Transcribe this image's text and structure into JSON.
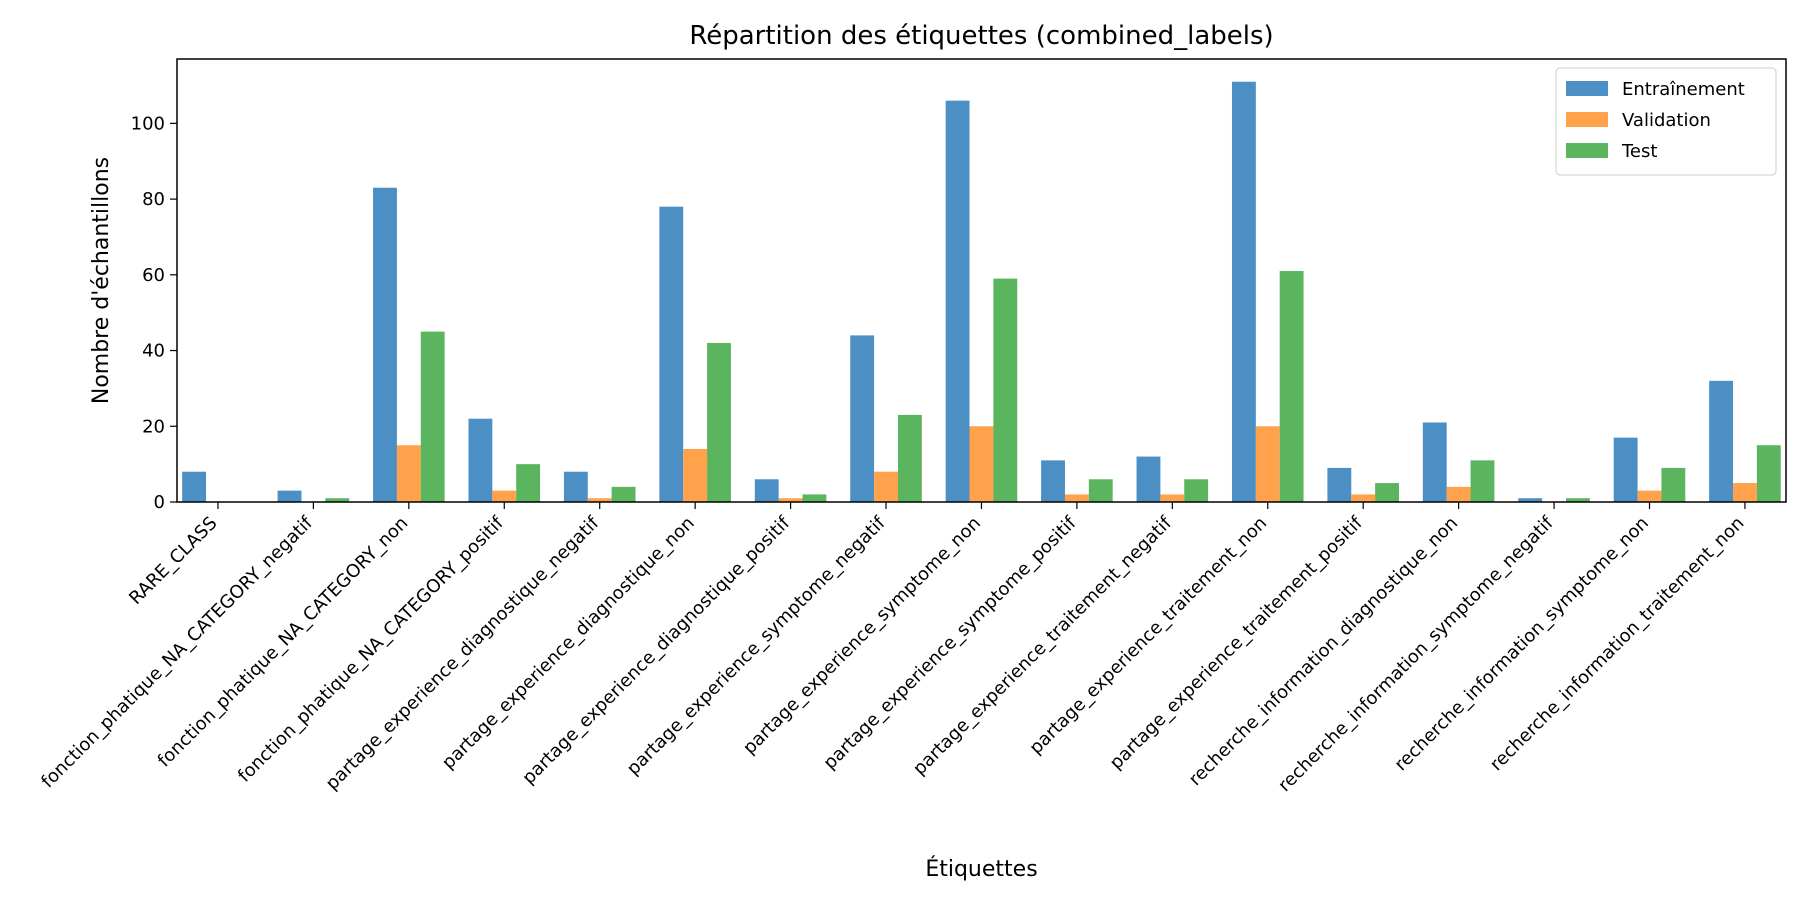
{
  "chart_data": {
    "type": "bar",
    "title": "Répartition des étiquettes (combined_labels)",
    "xlabel": "Étiquettes",
    "ylabel": "Nombre d'échantillons",
    "ylim": [
      0,
      117
    ],
    "yticks": [
      0,
      20,
      40,
      60,
      80,
      100
    ],
    "grid": false,
    "legend_position": "top-right",
    "categories": [
      "RARE_CLASS",
      "fonction_phatique_NA_CATEGORY_negatif",
      "fonction_phatique_NA_CATEGORY_non",
      "fonction_phatique_NA_CATEGORY_positif",
      "partage_experience_diagnostique_negatif",
      "partage_experience_diagnostique_non",
      "partage_experience_diagnostique_positif",
      "partage_experience_symptome_negatif",
      "partage_experience_symptome_non",
      "partage_experience_symptome_positif",
      "partage_experience_traitement_negatif",
      "partage_experience_traitement_non",
      "partage_experience_traitement_positif",
      "recherche_information_diagnostique_non",
      "recherche_information_symptome_negatif",
      "recherche_information_symptome_non",
      "recherche_information_traitement_non"
    ],
    "series": [
      {
        "name": "Entraînement",
        "color": "#3c86c0",
        "values": [
          8,
          3,
          83,
          22,
          8,
          78,
          6,
          44,
          106,
          11,
          12,
          111,
          9,
          21,
          1,
          17,
          32
        ]
      },
      {
        "name": "Validation",
        "color": "#ff9a3c",
        "values": [
          0,
          0,
          15,
          3,
          1,
          14,
          1,
          8,
          20,
          2,
          2,
          20,
          2,
          4,
          0,
          3,
          5
        ]
      },
      {
        "name": "Test",
        "color": "#4caf50",
        "values": [
          0,
          1,
          45,
          10,
          4,
          42,
          2,
          23,
          59,
          6,
          6,
          61,
          5,
          11,
          1,
          9,
          15
        ]
      }
    ]
  }
}
